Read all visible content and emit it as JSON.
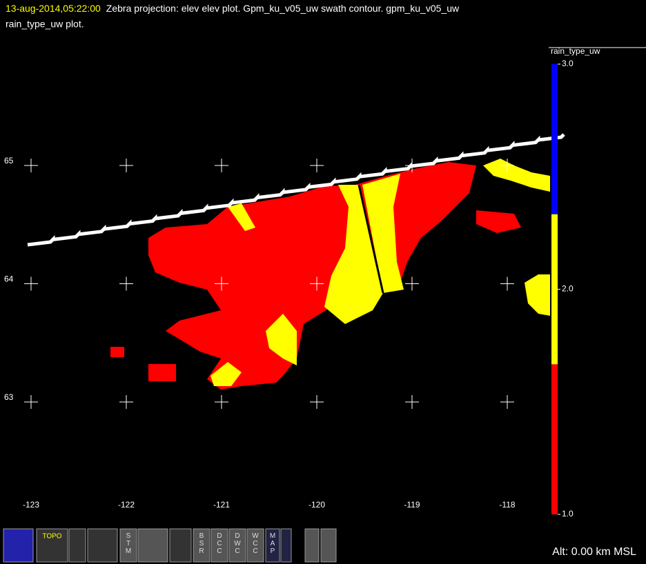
{
  "header": {
    "time": "13-aug-2014,05:22:00",
    "line1": "Zebra projection: elev elev  plot.  Gpm_ku_v05_uw swath contour.  gpm_ku_v05_uw",
    "line2": "rain_type_uw  plot."
  },
  "map": {
    "lon_ticks": [
      -123,
      -122,
      -121,
      -120,
      -119,
      -118
    ],
    "lat_ticks": [
      65,
      64,
      63
    ]
  },
  "colorbar": {
    "title": "rain_type_uw",
    "lim": [
      1,
      3
    ],
    "ticks": [
      {
        "value": 1,
        "label": "1.0"
      },
      {
        "value": 2,
        "label": "2.0"
      },
      {
        "value": 3,
        "label": "3.0"
      }
    ],
    "colors": [
      "#ff0000",
      "#ffff00",
      "#0000ff"
    ]
  },
  "status": "Alt: 0.00 km MSL",
  "toolbar": [
    "TOPO",
    "STM",
    "BSR",
    "DCC",
    "DWC",
    "WCC",
    "MAP"
  ]
}
